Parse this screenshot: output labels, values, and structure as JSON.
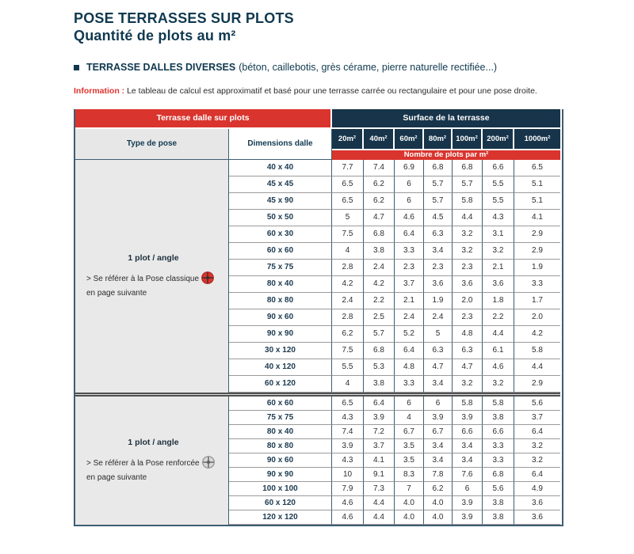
{
  "page": {
    "title_line1": "POSE TERRASSES SUR PLOTS",
    "title_line2": "Quantité de plots au m²",
    "section_heading_bold": "TERRASSE DALLES DIVERSES",
    "section_heading_rest": "(béton, caillebotis, grès cérame, pierre naturelle rectifiée...)",
    "info_label": "Information :",
    "info_text": " Le tableau de calcul est approximatif et basé pour une terrasse carrée ou rectangulaire et pour une pose droite."
  },
  "colors": {
    "navy": "#17344a",
    "red": "#d9342e",
    "title_navy": "#10394f",
    "border_slate": "#3f5e72",
    "icons": {
      "red": {
        "fill": "#d9342e",
        "ring": "#b02520",
        "line": "#38302e"
      },
      "gray": {
        "fill": "#d8d8d8",
        "ring": "#8f8f8f",
        "line": "#5f5f5f"
      }
    }
  },
  "table": {
    "header": {
      "left_banner": "Terrasse dalle sur plots",
      "right_banner": "Surface de la terrasse",
      "col_type": "Type de pose",
      "col_dimensions": "Dimensions dalle",
      "surface_columns": [
        "20m²",
        "40m²",
        "60m²",
        "80m²",
        "100m²",
        "200m²",
        "1000m²"
      ],
      "subheader": "Nombre de plots par m²"
    },
    "sections": [
      {
        "pose_title": "1 plot / angle",
        "note_line1": "> Se référer à la Pose classique",
        "note_line2": "en page suivante",
        "icon": "red",
        "rows": [
          {
            "dimension": "40 x 40",
            "values": [
              "7.7",
              "7.4",
              "6.9",
              "6.8",
              "6.8",
              "6.6",
              "6.5"
            ]
          },
          {
            "dimension": "45 x 45",
            "values": [
              "6.5",
              "6.2",
              "6",
              "5.7",
              "5.7",
              "5.5",
              "5.1"
            ]
          },
          {
            "dimension": "45 x 90",
            "values": [
              "6.5",
              "6.2",
              "6",
              "5.7",
              "5.8",
              "5.5",
              "5.1"
            ]
          },
          {
            "dimension": "50 x 50",
            "values": [
              "5",
              "4.7",
              "4.6",
              "4.5",
              "4.4",
              "4.3",
              "4.1"
            ]
          },
          {
            "dimension": "60 x 30",
            "values": [
              "7.5",
              "6.8",
              "6.4",
              "6.3",
              "3.2",
              "3.1",
              "2.9"
            ]
          },
          {
            "dimension": "60 x 60",
            "values": [
              "4",
              "3.8",
              "3.3",
              "3.4",
              "3.2",
              "3.2",
              "2.9"
            ]
          },
          {
            "dimension": "75 x 75",
            "values": [
              "2.8",
              "2.4",
              "2.3",
              "2.3",
              "2.3",
              "2.1",
              "1.9"
            ]
          },
          {
            "dimension": "80 x 40",
            "values": [
              "4.2",
              "4.2",
              "3.7",
              "3.6",
              "3.6",
              "3.6",
              "3.3"
            ]
          },
          {
            "dimension": "80 x 80",
            "values": [
              "2.4",
              "2.2",
              "2.1",
              "1.9",
              "2.0",
              "1.8",
              "1.7"
            ]
          },
          {
            "dimension": "90 x 60",
            "values": [
              "2.8",
              "2.5",
              "2.4",
              "2.4",
              "2.3",
              "2.2",
              "2.0"
            ]
          },
          {
            "dimension": "90 x 90",
            "values": [
              "6.2",
              "5.7",
              "5.2",
              "5",
              "4.8",
              "4.4",
              "4.2"
            ]
          },
          {
            "dimension": "30 x 120",
            "values": [
              "7.5",
              "6.8",
              "6.4",
              "6.3",
              "6.3",
              "6.1",
              "5.8"
            ]
          },
          {
            "dimension": "40 x 120",
            "values": [
              "5.5",
              "5.3",
              "4.8",
              "4.7",
              "4.7",
              "4.6",
              "4.4"
            ]
          },
          {
            "dimension": "60 x 120",
            "values": [
              "4",
              "3.8",
              "3.3",
              "3.4",
              "3.2",
              "3.2",
              "2.9"
            ]
          }
        ]
      },
      {
        "pose_title": "1 plot / angle",
        "note_line1": "> Se référer à la Pose renforcée",
        "note_line2": "en page suivante",
        "icon": "gray",
        "rows": [
          {
            "dimension": "60 x 60",
            "values": [
              "6.5",
              "6.4",
              "6",
              "6",
              "5.8",
              "5.8",
              "5.6"
            ]
          },
          {
            "dimension": "75 x 75",
            "values": [
              "4.3",
              "3.9",
              "4",
              "3.9",
              "3.9",
              "3.8",
              "3.7"
            ]
          },
          {
            "dimension": "80 x 40",
            "values": [
              "7.4",
              "7.2",
              "6.7",
              "6.7",
              "6.6",
              "6.6",
              "6.4"
            ]
          },
          {
            "dimension": "80 x 80",
            "values": [
              "3.9",
              "3.7",
              "3.5",
              "3.4",
              "3.4",
              "3.3",
              "3.2"
            ]
          },
          {
            "dimension": "90 x 60",
            "values": [
              "4.3",
              "4.1",
              "3.5",
              "3.4",
              "3.4",
              "3.3",
              "3.2"
            ]
          },
          {
            "dimension": "90 x 90",
            "values": [
              "10",
              "9.1",
              "8.3",
              "7.8",
              "7.6",
              "6.8",
              "6.4"
            ]
          },
          {
            "dimension": "100 x 100",
            "values": [
              "7.9",
              "7.3",
              "7",
              "6.2",
              "6",
              "5.6",
              "4.9"
            ]
          },
          {
            "dimension": "60 x 120",
            "values": [
              "4.6",
              "4.4",
              "4.0",
              "4.0",
              "3.9",
              "3.8",
              "3.6"
            ]
          },
          {
            "dimension": "120 x 120",
            "values": [
              "4.6",
              "4.4",
              "4.0",
              "4.0",
              "3.9",
              "3.8",
              "3.6"
            ]
          }
        ]
      }
    ]
  }
}
